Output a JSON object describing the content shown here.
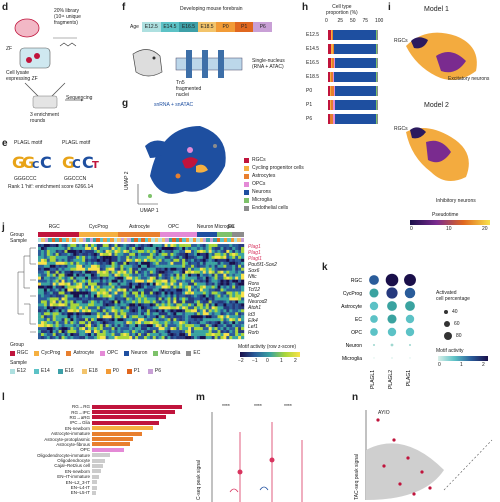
{
  "panels": {
    "d": {
      "letter": "d",
      "cell_text": "Cell lysate\nexpressing ZF",
      "zf_label": "ZF",
      "library_text": "20% library\n(10¹¹ unique\nfragments)",
      "rounds_text": "3 enrichment\nrounds",
      "seq_text": "Sequencing"
    },
    "e": {
      "letter": "e",
      "motif1_title": "PLAGL motif",
      "motif2_title": "PLAGL motif",
      "motif1_seq": "GGGCCC",
      "motif2_seq": "GGCCCN",
      "rank_text": "Rank 1 'hit': enrichment score 6266.14"
    },
    "f": {
      "letter": "f",
      "title": "Developing mouse forebrain",
      "age_label": "Age",
      "ages": [
        {
          "label": "E12.5",
          "color": "#aee0e0"
        },
        {
          "label": "E14.5",
          "color": "#5cc2c6"
        },
        {
          "label": "E16.5",
          "color": "#3da0a8"
        },
        {
          "label": "E18.5",
          "color": "#f3c46b"
        },
        {
          "label": "P0",
          "color": "#f29b36"
        },
        {
          "label": "P1",
          "color": "#e0671f"
        },
        {
          "label": "P6",
          "color": "#c9a0d6"
        }
      ],
      "tn5_text": "Tn5\nfragmented\nnuclei",
      "single_text": "Single-nucleus\n(RNA + ATAC)"
    },
    "g": {
      "letter": "g",
      "title": "snRNA + snATAC",
      "umap1": "UMAP 1",
      "umap2": "UMAP 2",
      "legend": [
        {
          "label": "RGCs",
          "color": "#c0143c"
        },
        {
          "label": "Cycling progenitor cells",
          "color": "#f5b041"
        },
        {
          "label": "Astrocytes",
          "color": "#e87f2e"
        },
        {
          "label": "OPCs",
          "color": "#e48ad6"
        },
        {
          "label": "Neurons",
          "color": "#1e4fa0"
        },
        {
          "label": "Microglia",
          "color": "#7ec26a"
        },
        {
          "label": "Endothelial cells",
          "color": "#8c8c8c"
        }
      ]
    },
    "h": {
      "letter": "h",
      "title": "Cell type\nproportion (%)",
      "ticks": [
        "0",
        "25",
        "50",
        "75",
        "100"
      ],
      "rows": [
        "E12.5",
        "E14.5",
        "E16.5",
        "E18.5",
        "P0",
        "P1",
        "P6"
      ]
    },
    "i": {
      "letter": "i",
      "model1": "Model 1",
      "model2": "Model 2",
      "rgcs": "RGCs",
      "excit": "Excitatory neurons",
      "inhib": "Inhibitory neurons",
      "pseudotime": "Pseudotime",
      "pt_ticks": [
        "0",
        "10",
        "20"
      ]
    },
    "j": {
      "letter": "j",
      "group_label": "Group",
      "sample_label": "Sample",
      "groups": [
        {
          "label": "RGC",
          "color": "#c0143c"
        },
        {
          "label": "CycProg",
          "color": "#f5b041"
        },
        {
          "label": "Astrocyte",
          "color": "#e87f2e"
        },
        {
          "label": "OPC",
          "color": "#e48ad6"
        },
        {
          "label": "Neuron",
          "color": "#1e4fa0"
        },
        {
          "label": "Microglia",
          "color": "#7ec26a"
        },
        {
          "label": "EC",
          "color": "#8c8c8c"
        }
      ],
      "genes_red": [
        "Plag1",
        "Plag1",
        "Plagl1"
      ],
      "genes": [
        "Pou5f1-Sox2",
        "Sox6",
        "Nfic",
        "Rora",
        "Tcf12",
        "Olig2",
        "Neurod2",
        "Atoh1",
        "Id3",
        "Elk4",
        "Lef1",
        "Rorb"
      ],
      "legend_group_title": "Group",
      "legend_sample_title": "Sample",
      "samples": [
        {
          "label": "E12",
          "color": "#aee0e0"
        },
        {
          "label": "E14",
          "color": "#5cc2c6"
        },
        {
          "label": "E16",
          "color": "#3da0a8"
        },
        {
          "label": "E18",
          "color": "#f3c46b"
        },
        {
          "label": "P0",
          "color": "#f29b36"
        },
        {
          "label": "P1",
          "color": "#e0671f"
        },
        {
          "label": "P6",
          "color": "#c9a0d6"
        }
      ],
      "motif_title": "Motif activity (row z-score)",
      "motif_ticks": [
        "−2",
        "−1",
        "0",
        "1",
        "2"
      ]
    },
    "k": {
      "letter": "k",
      "rows": [
        "RGC",
        "CycProg",
        "Astrocyte",
        "EC",
        "OPC",
        "Neuron",
        "Microglia"
      ],
      "cols": [
        "PLAGL1",
        "PLAGL2",
        "PLAG1"
      ],
      "size_title": "Activated\ncell percentage",
      "size_ticks": [
        "40",
        "60",
        "80"
      ],
      "color_title": "Motif activity",
      "color_ticks": [
        "0",
        "1",
        "2"
      ]
    },
    "l": {
      "letter": "l",
      "rows": [
        "RG→RG",
        "RG→IPC",
        "RG→aRG",
        "IPC→Glia",
        "EN-newborn",
        "Astrocyte-immature",
        "Astrocyte-protoplasmic",
        "Astrocyte-fibrous",
        "OPC",
        "Oligodendrocyte-immature",
        "Oligodendrocyte",
        "Cajal–Retzius cell",
        "EN-newborn",
        "EN–IT-immature",
        "EN–L2_3-IT",
        "EN–L4-IT",
        "EN–L5-IT"
      ]
    },
    "m": {
      "letter": "m",
      "ylabel": "C-seq peak signal",
      "stars": [
        "****",
        "****",
        "****"
      ]
    },
    "n": {
      "letter": "n",
      "ylabel": "TAC-seq peak signal",
      "gene": "AYIO"
    }
  }
}
